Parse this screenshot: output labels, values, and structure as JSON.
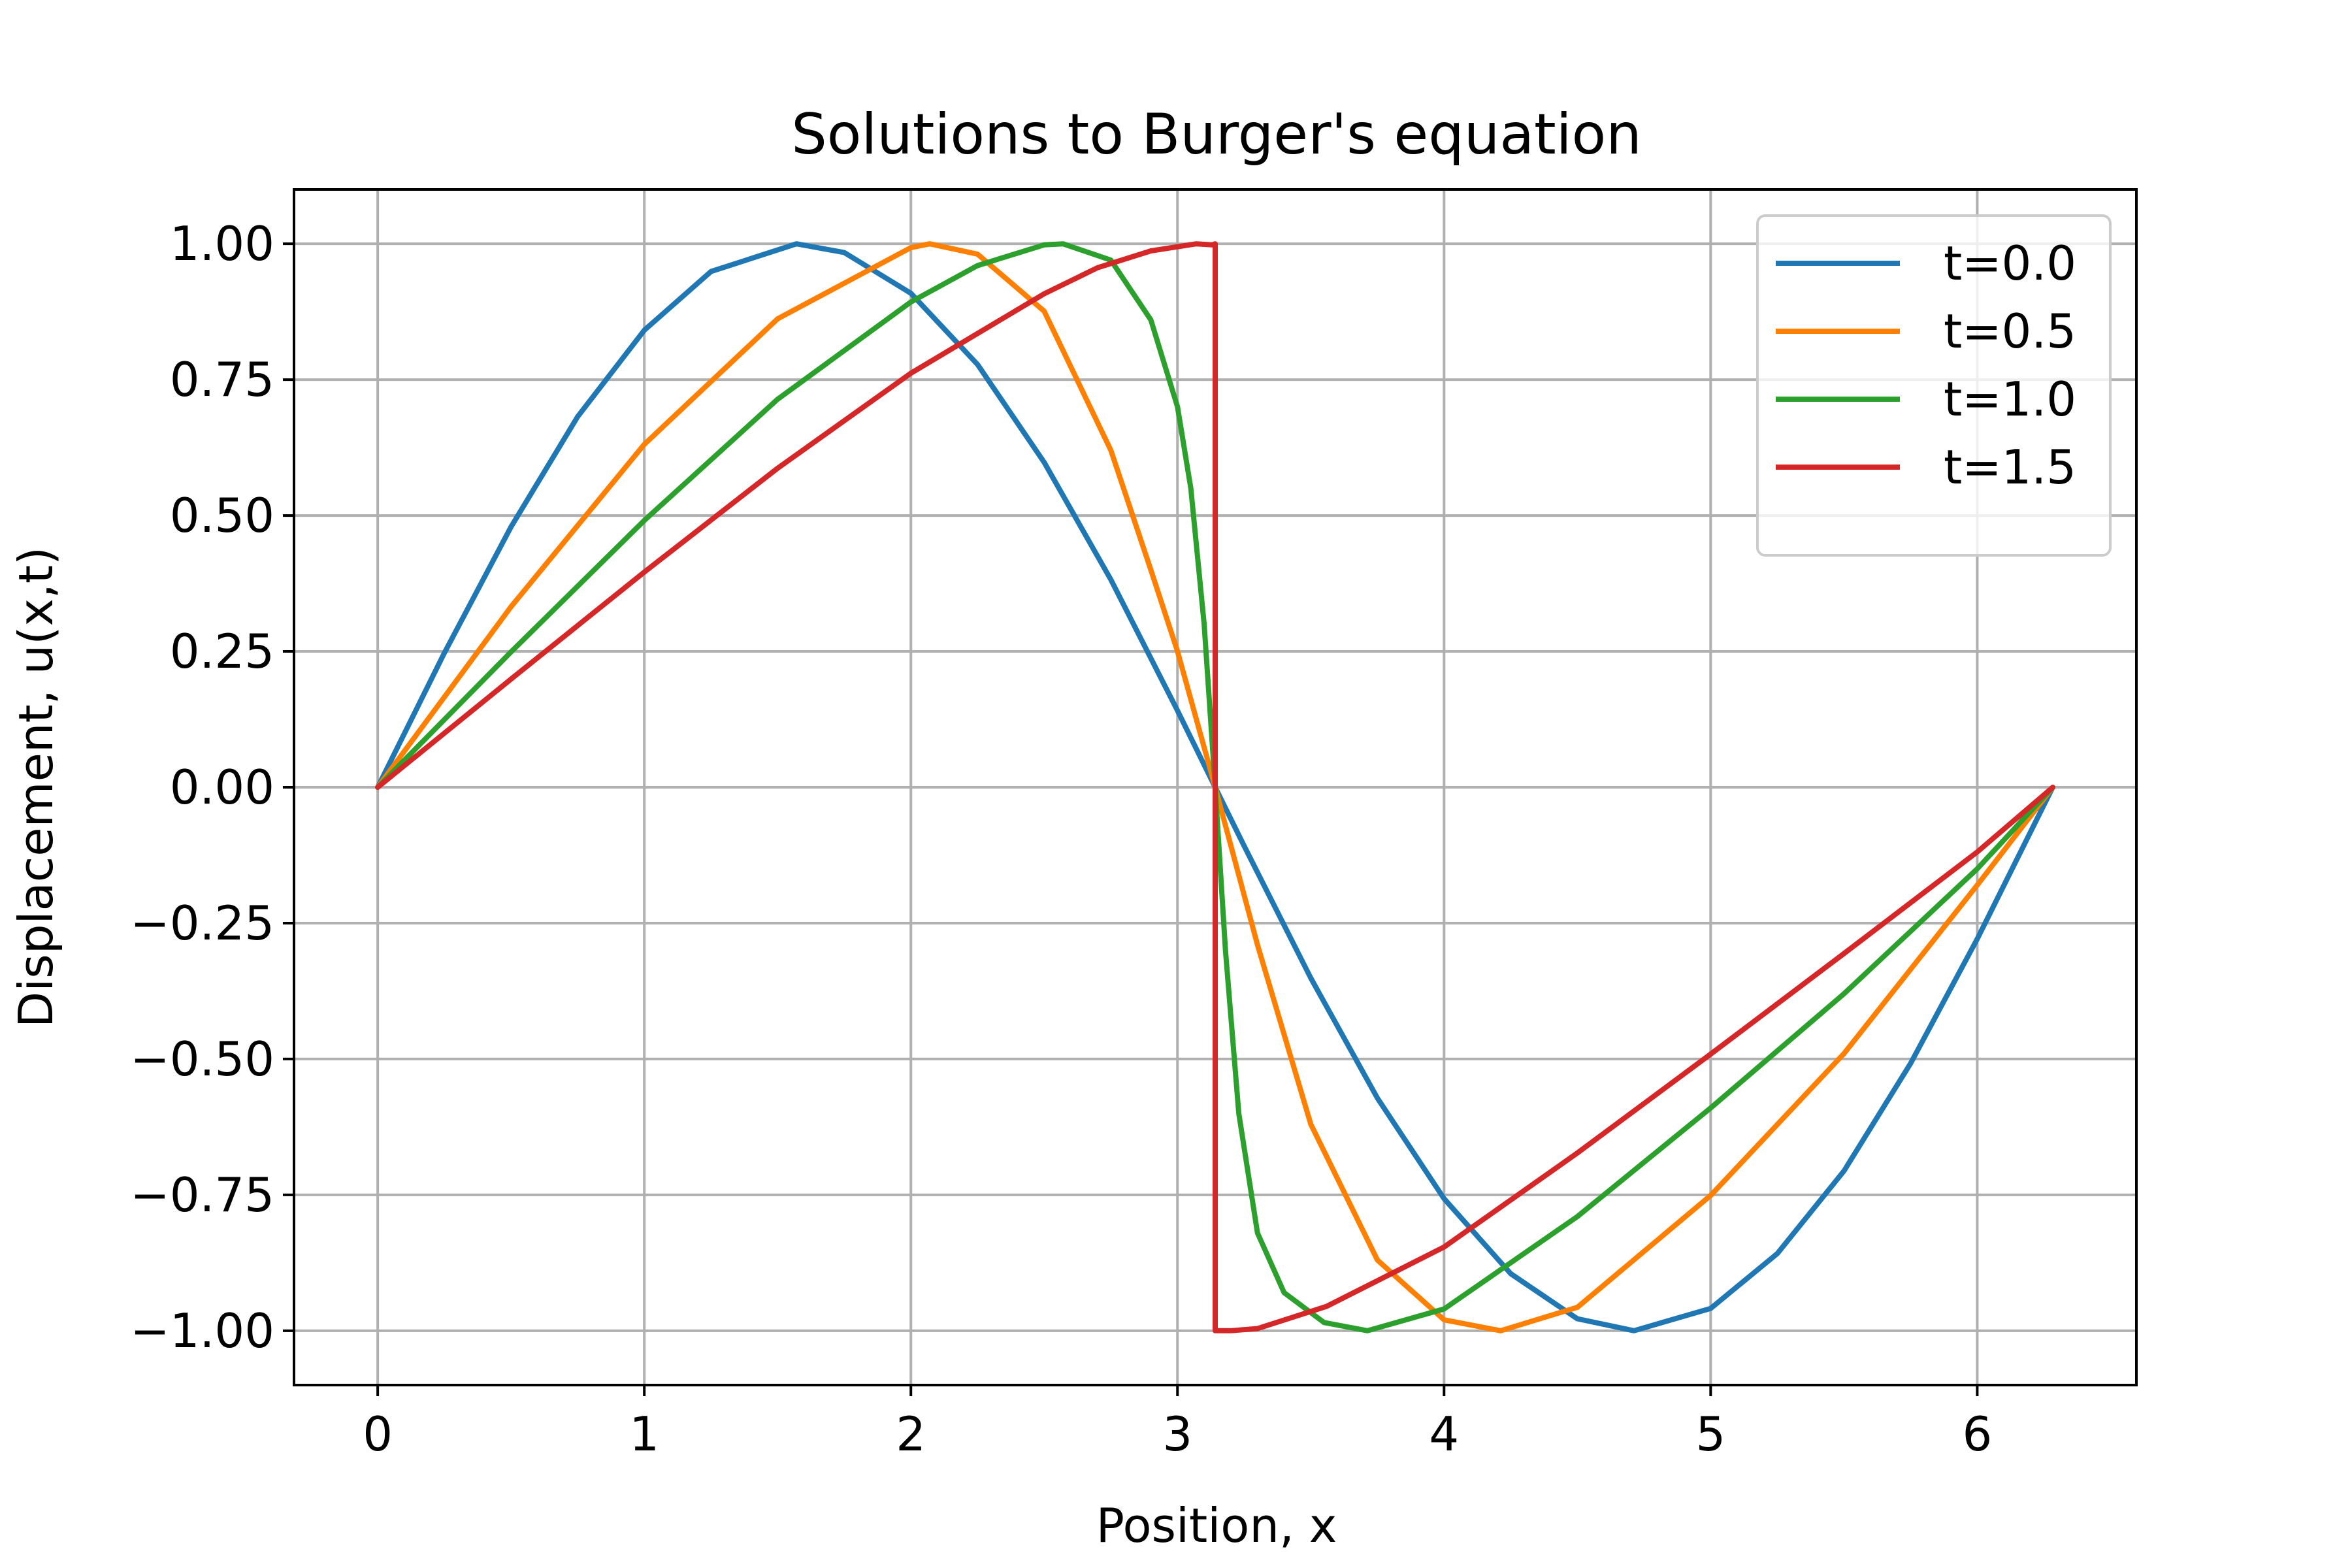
{
  "chart_data": {
    "type": "line",
    "title": "Solutions to Burger's equation",
    "xlabel": "Position, x",
    "ylabel": "Displacement, u(x,t)",
    "xlim": [
      -0.314,
      6.597
    ],
    "ylim": [
      -1.1,
      1.1
    ],
    "xticks": [
      0,
      1,
      2,
      3,
      4,
      5,
      6
    ],
    "xtick_labels": [
      "0",
      "1",
      "2",
      "3",
      "4",
      "5",
      "6"
    ],
    "yticks": [
      1.0,
      0.75,
      0.5,
      0.25,
      0.0,
      -0.25,
      -0.5,
      -0.75,
      -1.0
    ],
    "ytick_labels": [
      "1.00",
      "0.75",
      "0.50",
      "0.25",
      "0.00",
      "−0.25",
      "−0.50",
      "−0.75",
      "−1.00"
    ],
    "grid": true,
    "legend_position": "top-right",
    "colors": {
      "axes": "#000000",
      "grid": "#b0b0b0"
    },
    "series": [
      {
        "name": "t=0.0",
        "color": "#1f77b4",
        "x": [
          0,
          0.25,
          0.5,
          0.75,
          1.0,
          1.25,
          1.5708,
          1.75,
          2.0,
          2.25,
          2.5,
          2.75,
          3.0,
          3.1416,
          3.25,
          3.5,
          3.75,
          4.0,
          4.25,
          4.5,
          4.7124,
          5.0,
          5.25,
          5.5,
          5.75,
          6.0,
          6.2832
        ],
        "y": [
          0,
          0.247,
          0.479,
          0.682,
          0.841,
          0.949,
          1.0,
          0.984,
          0.909,
          0.778,
          0.598,
          0.382,
          0.141,
          0,
          -0.108,
          -0.351,
          -0.572,
          -0.757,
          -0.895,
          -0.978,
          -1.0,
          -0.959,
          -0.858,
          -0.706,
          -0.508,
          -0.279,
          0
        ]
      },
      {
        "name": "t=0.5",
        "color": "#ff7f00",
        "x": [
          0,
          0.5,
          1.0,
          1.5,
          2.0,
          2.0708,
          2.25,
          2.5,
          2.75,
          2.9,
          3.0,
          3.1416,
          3.3,
          3.5,
          3.75,
          4.0,
          4.2124,
          4.5,
          5.0,
          5.5,
          6.0,
          6.2832
        ],
        "y": [
          0,
          0.332,
          0.631,
          0.862,
          0.993,
          1.0,
          0.981,
          0.876,
          0.62,
          0.4,
          0.25,
          0,
          -0.29,
          -0.62,
          -0.87,
          -0.98,
          -1.0,
          -0.957,
          -0.751,
          -0.49,
          -0.18,
          0
        ]
      },
      {
        "name": "t=1.0",
        "color": "#2ca02c",
        "x": [
          0,
          0.5,
          1.0,
          1.5,
          2.0,
          2.25,
          2.5,
          2.5708,
          2.75,
          2.9,
          3.0,
          3.05,
          3.1,
          3.1416,
          3.18,
          3.23,
          3.3,
          3.4,
          3.55,
          3.7124,
          4.0,
          4.5,
          5.0,
          5.5,
          6.0,
          6.2832
        ],
        "y": [
          0,
          0.249,
          0.491,
          0.714,
          0.893,
          0.96,
          0.998,
          1.0,
          0.97,
          0.86,
          0.7,
          0.55,
          0.3,
          0,
          -0.3,
          -0.6,
          -0.82,
          -0.93,
          -0.985,
          -1.0,
          -0.96,
          -0.79,
          -0.59,
          -0.38,
          -0.15,
          0
        ]
      },
      {
        "name": "t=1.5",
        "color": "#d62728",
        "x": [
          0,
          0.5,
          1.0,
          1.5,
          2.0,
          2.5,
          2.7,
          2.9,
          3.0708,
          3.13,
          3.1416,
          3.1416,
          3.2,
          3.3,
          3.56,
          4.0,
          4.5,
          5.0,
          5.5,
          6.0,
          6.2832
        ],
        "y": [
          0,
          0.199,
          0.396,
          0.587,
          0.762,
          0.908,
          0.956,
          0.987,
          1.0,
          0.998,
          1.0,
          -1.0,
          -1.0,
          -0.996,
          -0.955,
          -0.846,
          -0.673,
          -0.491,
          -0.306,
          -0.119,
          0
        ]
      }
    ]
  }
}
